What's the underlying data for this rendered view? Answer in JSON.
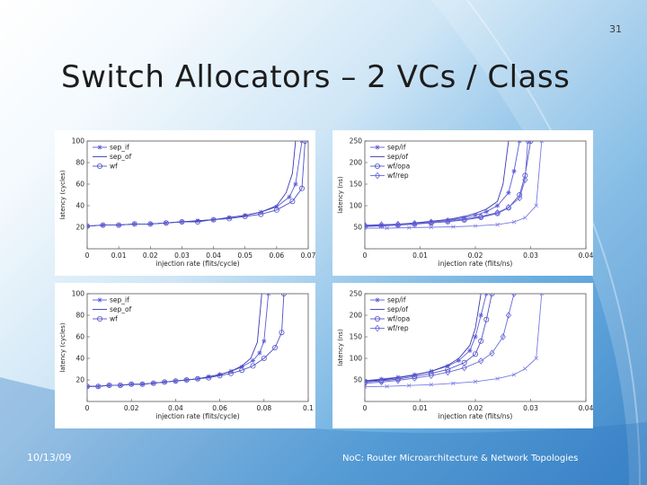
{
  "slide": {
    "page_number": "31",
    "title": "Switch Allocators – 2 VCs / Class",
    "footer_date": "10/13/09",
    "footer_text": "NoC: Router Microarchitecture & Network Topologies"
  },
  "chart_data": [
    {
      "type": "line",
      "xlabel": "injection rate (flits/cycle)",
      "ylabel": "latency (cycles)",
      "xlim": [
        0,
        0.07
      ],
      "ylim": [
        0,
        100
      ],
      "xticks": [
        "0",
        "0.01",
        "0.02",
        "0.03",
        "0.04",
        "0.05",
        "0.06",
        "0.07"
      ],
      "yticks": [
        "20",
        "40",
        "60",
        "80",
        "100"
      ],
      "legend": [
        "sep_if",
        "sep_of",
        "wf"
      ],
      "series": [
        {
          "name": "sep_if",
          "marker": "star",
          "x": [
            0,
            0.005,
            0.01,
            0.015,
            0.02,
            0.025,
            0.03,
            0.035,
            0.04,
            0.045,
            0.05,
            0.055,
            0.06,
            0.064,
            0.066,
            0.068
          ],
          "y": [
            21,
            22,
            22,
            23,
            23,
            24,
            25,
            26,
            27,
            29,
            31,
            34,
            39,
            48,
            60,
            100
          ]
        },
        {
          "name": "sep_of",
          "marker": "none",
          "x": [
            0,
            0.005,
            0.01,
            0.015,
            0.02,
            0.025,
            0.03,
            0.035,
            0.04,
            0.045,
            0.05,
            0.055,
            0.06,
            0.063,
            0.065,
            0.066
          ],
          "y": [
            21,
            22,
            22,
            23,
            23,
            24,
            25,
            26,
            27,
            29,
            31,
            34,
            40,
            52,
            70,
            100
          ]
        },
        {
          "name": "wf",
          "marker": "circle",
          "x": [
            0,
            0.005,
            0.01,
            0.015,
            0.02,
            0.025,
            0.03,
            0.035,
            0.04,
            0.045,
            0.05,
            0.055,
            0.06,
            0.065,
            0.068,
            0.069
          ],
          "y": [
            21,
            22,
            22,
            23,
            23,
            24,
            25,
            25,
            27,
            28,
            30,
            32,
            36,
            44,
            56,
            100
          ]
        }
      ]
    },
    {
      "type": "line",
      "xlabel": "injection rate (flits/ns)",
      "ylabel": "latency (ns)",
      "xlim": [
        0,
        0.04
      ],
      "ylim": [
        0,
        250
      ],
      "xticks": [
        "0",
        "0.01",
        "0.02",
        "0.03",
        "0.04"
      ],
      "yticks": [
        "50",
        "100",
        "150",
        "200",
        "250"
      ],
      "legend": [
        "sep/if",
        "sep/of",
        "wf/opa",
        "wf/rep"
      ],
      "series": [
        {
          "name": "sep/if",
          "marker": "star",
          "x": [
            0,
            0.003,
            0.006,
            0.009,
            0.012,
            0.015,
            0.018,
            0.02,
            0.022,
            0.024,
            0.026,
            0.027,
            0.028
          ],
          "y": [
            52,
            54,
            56,
            58,
            62,
            66,
            72,
            78,
            86,
            100,
            130,
            180,
            250
          ]
        },
        {
          "name": "sep/of",
          "marker": "none",
          "x": [
            0,
            0.003,
            0.006,
            0.009,
            0.012,
            0.015,
            0.018,
            0.02,
            0.022,
            0.024,
            0.025,
            0.026
          ],
          "y": [
            53,
            55,
            57,
            60,
            64,
            68,
            75,
            82,
            92,
            110,
            150,
            250
          ]
        },
        {
          "name": "wf/opa",
          "marker": "circle",
          "x": [
            0,
            0.003,
            0.006,
            0.009,
            0.012,
            0.015,
            0.018,
            0.021,
            0.024,
            0.026,
            0.028,
            0.029,
            0.03
          ],
          "y": [
            52,
            53,
            55,
            57,
            60,
            63,
            67,
            73,
            82,
            95,
            125,
            170,
            250
          ]
        },
        {
          "name": "wf/rep",
          "marker": "diamond",
          "x": [
            0,
            0.003,
            0.006,
            0.009,
            0.012,
            0.015,
            0.018,
            0.021,
            0.024,
            0.026,
            0.028,
            0.029,
            0.0295
          ],
          "y": [
            55,
            56,
            57,
            59,
            62,
            65,
            69,
            75,
            84,
            96,
            118,
            160,
            250
          ]
        },
        {
          "name": "",
          "marker": "x",
          "x": [
            0,
            0.004,
            0.008,
            0.012,
            0.016,
            0.02,
            0.024,
            0.027,
            0.029,
            0.031,
            0.032
          ],
          "y": [
            48,
            48,
            49,
            50,
            51,
            53,
            56,
            62,
            72,
            100,
            250
          ]
        }
      ]
    },
    {
      "type": "line",
      "xlabel": "injection rate (flits/cycle)",
      "ylabel": "latency (cycles)",
      "xlim": [
        0,
        0.1
      ],
      "ylim": [
        0,
        100
      ],
      "xticks": [
        "0",
        "0.02",
        "0.04",
        "0.06",
        "0.08",
        "0.1"
      ],
      "yticks": [
        "20",
        "40",
        "60",
        "80",
        "100"
      ],
      "legend": [
        "sep_if",
        "sep_of",
        "wf"
      ],
      "series": [
        {
          "name": "sep_if",
          "marker": "star",
          "x": [
            0,
            0.005,
            0.01,
            0.015,
            0.02,
            0.025,
            0.03,
            0.035,
            0.04,
            0.045,
            0.05,
            0.055,
            0.06,
            0.065,
            0.07,
            0.075,
            0.078,
            0.08,
            0.082
          ],
          "y": [
            14,
            14,
            15,
            15,
            16,
            16,
            17,
            18,
            19,
            20,
            21,
            23,
            25,
            28,
            32,
            38,
            45,
            56,
            100
          ]
        },
        {
          "name": "sep_of",
          "marker": "none",
          "x": [
            0,
            0.005,
            0.01,
            0.015,
            0.02,
            0.025,
            0.03,
            0.035,
            0.04,
            0.045,
            0.05,
            0.055,
            0.06,
            0.065,
            0.07,
            0.074,
            0.077,
            0.079
          ],
          "y": [
            14,
            14,
            15,
            15,
            16,
            16,
            17,
            18,
            19,
            20,
            21,
            23,
            25,
            28,
            33,
            40,
            55,
            100
          ]
        },
        {
          "name": "wf",
          "marker": "circle",
          "x": [
            0,
            0.005,
            0.01,
            0.015,
            0.02,
            0.025,
            0.03,
            0.035,
            0.04,
            0.045,
            0.05,
            0.055,
            0.06,
            0.065,
            0.07,
            0.075,
            0.08,
            0.085,
            0.088,
            0.089
          ],
          "y": [
            14,
            14,
            15,
            15,
            16,
            16,
            17,
            18,
            19,
            20,
            21,
            22,
            24,
            26,
            29,
            33,
            40,
            50,
            64,
            100
          ]
        }
      ]
    },
    {
      "type": "line",
      "xlabel": "injection rate (flits/ns)",
      "ylabel": "latency (ns)",
      "xlim": [
        0,
        0.04
      ],
      "ylim": [
        0,
        250
      ],
      "xticks": [
        "0",
        "0.01",
        "0.02",
        "0.03",
        "0.04"
      ],
      "yticks": [
        "50",
        "100",
        "150",
        "200",
        "250"
      ],
      "legend": [
        "sep/if",
        "sep/of",
        "wf/opa",
        "wf/rep"
      ],
      "series": [
        {
          "name": "sep/if",
          "marker": "star",
          "x": [
            0,
            0.003,
            0.006,
            0.009,
            0.012,
            0.015,
            0.017,
            0.019,
            0.02,
            0.021,
            0.022
          ],
          "y": [
            48,
            52,
            56,
            62,
            70,
            82,
            95,
            118,
            150,
            200,
            250
          ]
        },
        {
          "name": "sep/of",
          "marker": "none",
          "x": [
            0,
            0.003,
            0.006,
            0.009,
            0.012,
            0.015,
            0.017,
            0.019,
            0.02,
            0.021
          ],
          "y": [
            47,
            50,
            55,
            61,
            70,
            84,
            100,
            130,
            170,
            250
          ]
        },
        {
          "name": "wf/opa",
          "marker": "circle",
          "x": [
            0,
            0.003,
            0.006,
            0.009,
            0.012,
            0.015,
            0.018,
            0.02,
            0.021,
            0.022,
            0.023
          ],
          "y": [
            45,
            48,
            52,
            58,
            65,
            74,
            90,
            110,
            140,
            190,
            250
          ]
        },
        {
          "name": "wf/rep",
          "marker": "diamond",
          "x": [
            0,
            0.003,
            0.006,
            0.009,
            0.012,
            0.015,
            0.018,
            0.021,
            0.023,
            0.025,
            0.026,
            0.027
          ],
          "y": [
            42,
            45,
            49,
            54,
            60,
            68,
            78,
            94,
            112,
            150,
            200,
            250
          ]
        },
        {
          "name": "",
          "marker": "x",
          "x": [
            0,
            0.004,
            0.008,
            0.012,
            0.016,
            0.02,
            0.024,
            0.027,
            0.029,
            0.031,
            0.032
          ],
          "y": [
            34,
            35,
            37,
            39,
            42,
            46,
            53,
            62,
            76,
            100,
            250
          ]
        }
      ]
    }
  ]
}
